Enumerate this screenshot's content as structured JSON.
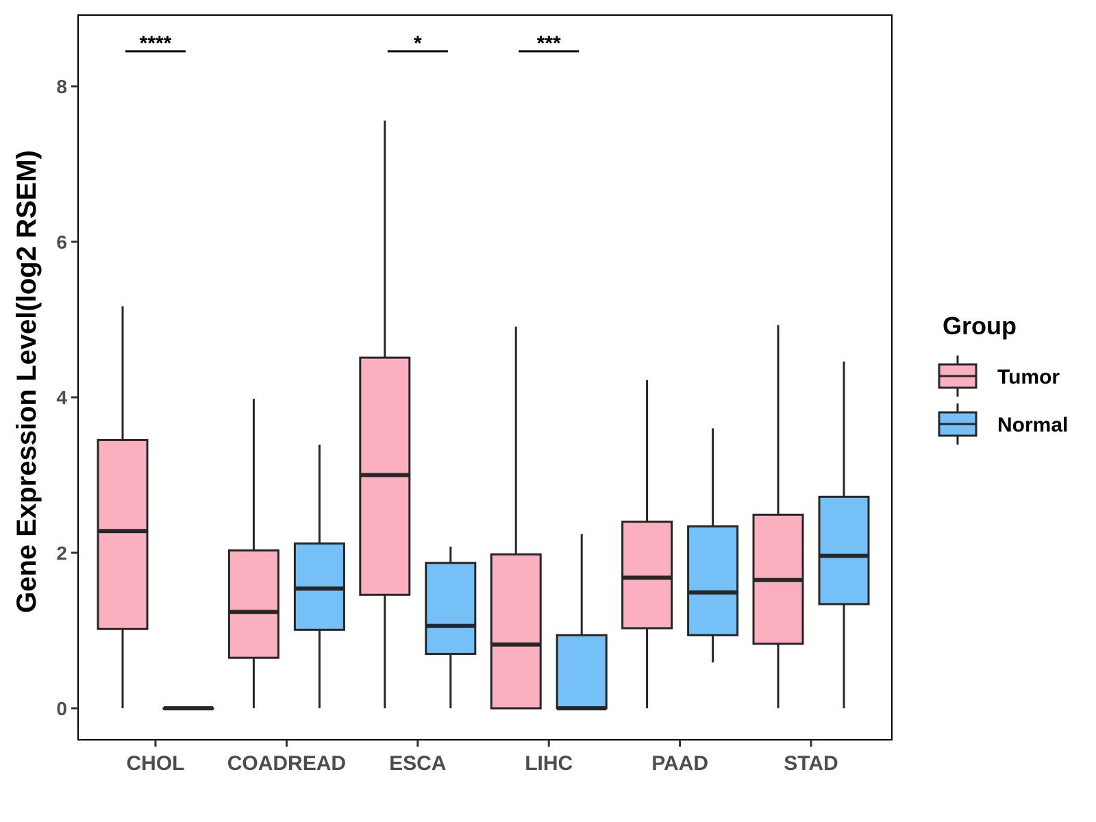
{
  "chart_data": {
    "type": "boxplot",
    "title": "",
    "xlabel": "",
    "ylabel": "Gene Expression Level(log2 RSEM)",
    "ylim": [
      -0.4,
      8.9
    ],
    "yticks": [
      0,
      2,
      4,
      6,
      8
    ],
    "categories": [
      "CHOL",
      "COADREAD",
      "ESCA",
      "LIHC",
      "PAAD",
      "STAD"
    ],
    "legend": {
      "title": "Group",
      "position": "right",
      "entries": [
        {
          "name": "Tumor",
          "color": "#fbb0c0"
        },
        {
          "name": "Normal",
          "color": "#74c0f7"
        }
      ]
    },
    "series": [
      {
        "name": "Tumor",
        "color": "#fbb0c0",
        "boxes": [
          {
            "min": 0,
            "q1": 1.02,
            "median": 2.28,
            "q3": 3.45,
            "max": 5.17
          },
          {
            "min": 0,
            "q1": 0.65,
            "median": 1.24,
            "q3": 2.03,
            "max": 3.98
          },
          {
            "min": 0,
            "q1": 1.46,
            "median": 3.0,
            "q3": 4.51,
            "max": 7.56
          },
          {
            "min": 0,
            "q1": 0.0,
            "median": 0.82,
            "q3": 1.98,
            "max": 4.91
          },
          {
            "min": 0,
            "q1": 1.03,
            "median": 1.68,
            "q3": 2.4,
            "max": 4.22
          },
          {
            "min": 0,
            "q1": 0.83,
            "median": 1.65,
            "q3": 2.49,
            "max": 4.93
          }
        ]
      },
      {
        "name": "Normal",
        "color": "#74c0f7",
        "boxes": [
          {
            "min": 0,
            "q1": 0.0,
            "median": 0.0,
            "q3": 0.0,
            "max": 0.0
          },
          {
            "min": 0,
            "q1": 1.01,
            "median": 1.54,
            "q3": 2.12,
            "max": 3.39
          },
          {
            "min": 0,
            "q1": 0.7,
            "median": 1.06,
            "q3": 1.87,
            "max": 2.08
          },
          {
            "min": 0,
            "q1": 0.0,
            "median": 0.0,
            "q3": 0.94,
            "max": 2.24
          },
          {
            "min": 0.59,
            "q1": 0.94,
            "median": 1.49,
            "q3": 2.34,
            "max": 3.6
          },
          {
            "min": 0,
            "q1": 1.34,
            "median": 1.96,
            "q3": 2.72,
            "max": 4.46
          }
        ]
      }
    ],
    "significance": [
      {
        "category": "CHOL",
        "label": "****",
        "y": 8.45
      },
      {
        "category": "ESCA",
        "label": "*",
        "y": 8.45
      },
      {
        "category": "LIHC",
        "label": "***",
        "y": 8.45
      }
    ]
  }
}
